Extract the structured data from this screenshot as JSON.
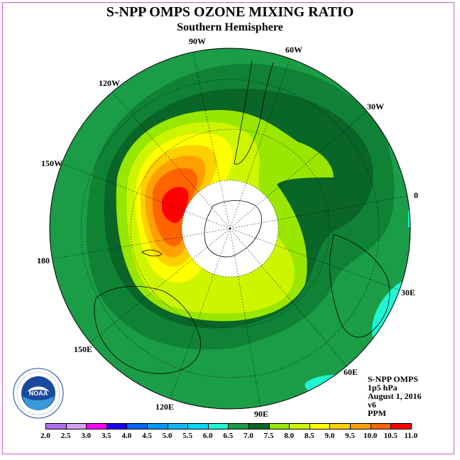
{
  "title": "S-NPP OMPS OZONE MIXING RATIO",
  "subtitle": "Southern Hemisphere",
  "longitude_labels": {
    "w90": "90W",
    "w60": "60W",
    "w30": "30W",
    "w120": "120W",
    "w150": "150W",
    "e0": "0",
    "lon180": "180",
    "e30": "30E",
    "e60": "60E",
    "e90": "90E",
    "e120": "120E",
    "e150": "150E"
  },
  "info": {
    "instrument": "S-NPP OMPS",
    "level": "1p5 hPa",
    "date": "August 1, 2016",
    "version": "v6",
    "units": "PPM"
  },
  "logo": {
    "text": "NOAA",
    "ring_text": "NATIONAL OCEANIC AND ATMOSPHERIC ADMINISTRATION U.S. DEPARTMENT OF COMMERCE"
  },
  "colors": {
    "c6_0": "#1b9c46",
    "c6_5": "#0f8236",
    "c7_0": "#096528",
    "c7_5": "#99e600",
    "c8_0": "#cdf500",
    "c8_5": "#ffff00",
    "c9_0": "#ffd000",
    "c9_5": "#ffa000",
    "c10_0": "#ff5000",
    "c10_5": "#ff0000",
    "c5_5": "#1ef5d2",
    "pole_mask": "#ffffff"
  },
  "colorbar": {
    "labels": [
      "2.0",
      "2.5",
      "3.0",
      "3.5",
      "4.0",
      "4.5",
      "5.0",
      "5.5",
      "6.0",
      "6.5",
      "7.0",
      "7.5",
      "8.0",
      "8.5",
      "9.0",
      "9.5",
      "10.0",
      "10.5",
      "11.0"
    ],
    "colors": [
      "#b070f0",
      "#d8a0f0",
      "#ff00ff",
      "#1a00ff",
      "#0064ff",
      "#0096ff",
      "#14b4ff",
      "#00d7ff",
      "#1ef5d2",
      "#1b9c46",
      "#096528",
      "#99e600",
      "#cdf500",
      "#ffff00",
      "#ffd000",
      "#ffa000",
      "#ff6400",
      "#ff0000",
      "#8a4a2a"
    ]
  }
}
